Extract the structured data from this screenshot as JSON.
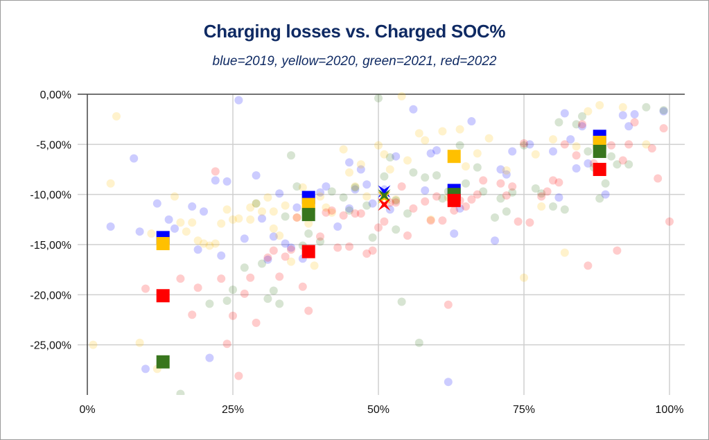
{
  "chart_data": {
    "type": "scatter",
    "title": "Charging losses vs. Charged SOC%",
    "subtitle": "blue=2019, yellow=2020, green=2021, red=2022",
    "xlabel": "",
    "ylabel": "",
    "xlim": [
      0,
      100
    ],
    "ylim": [
      -30,
      0
    ],
    "grid": true,
    "legend": "none",
    "x_ticks": [
      "0%",
      "25%",
      "50%",
      "75%",
      "100%"
    ],
    "x_tick_values": [
      0,
      25,
      50,
      75,
      100
    ],
    "y_ticks": [
      "0,00%",
      "-5,00%",
      "-10,00%",
      "-15,00%",
      "-20,00%",
      "-25,00%"
    ],
    "y_tick_values": [
      0,
      -5,
      -10,
      -15,
      -20,
      -25
    ],
    "colors": {
      "2019": "#0000ff",
      "2020": "#ffc000",
      "2021": "#38761d",
      "2022": "#ff0000"
    },
    "series": [
      {
        "name": "2019",
        "color_name": "blue",
        "kind": "points",
        "points": [
          [
            4,
            -13.2
          ],
          [
            8,
            -6.4
          ],
          [
            9,
            -13.7
          ],
          [
            10,
            -27.4
          ],
          [
            12,
            -10.9
          ],
          [
            14,
            -12.5
          ],
          [
            15,
            -13.4
          ],
          [
            18,
            -11.2
          ],
          [
            19,
            -15.5
          ],
          [
            20,
            -11.7
          ],
          [
            21,
            -26.3
          ],
          [
            22,
            -8.6
          ],
          [
            23,
            -16.1
          ],
          [
            24,
            -8.7
          ],
          [
            26,
            -0.6
          ],
          [
            27,
            -14.4
          ],
          [
            29,
            -8.1
          ],
          [
            30,
            -12.4
          ],
          [
            31,
            -16.5
          ],
          [
            32,
            -14.2
          ],
          [
            33,
            -9.9
          ],
          [
            34,
            -14.9
          ],
          [
            35,
            -15.3
          ],
          [
            36,
            -11.3
          ],
          [
            37,
            -16.4
          ],
          [
            40,
            -9.8
          ],
          [
            41,
            -9.2
          ],
          [
            43,
            -13.2
          ],
          [
            45,
            -6.8
          ],
          [
            45,
            -11.4
          ],
          [
            46,
            -9.5
          ],
          [
            47,
            -7.5
          ],
          [
            48,
            -9.0
          ],
          [
            49,
            -10.9
          ],
          [
            51,
            -9.5
          ],
          [
            52,
            -11.5
          ],
          [
            53,
            -6.2
          ],
          [
            56,
            -1.5
          ],
          [
            58,
            -9.6
          ],
          [
            59,
            -5.9
          ],
          [
            60,
            -5.6
          ],
          [
            62,
            -28.7
          ],
          [
            63,
            -9.6
          ],
          [
            63,
            -13.9
          ],
          [
            64,
            -11.4
          ],
          [
            66,
            -2.7
          ],
          [
            70,
            -14.6
          ],
          [
            71,
            -7.5
          ],
          [
            72,
            -8.0
          ],
          [
            73,
            -5.7
          ],
          [
            76,
            -5.0
          ],
          [
            80,
            -5.7
          ],
          [
            81,
            -10.3
          ],
          [
            82,
            -1.9
          ],
          [
            83,
            -4.5
          ],
          [
            84,
            -7.4
          ],
          [
            85,
            -3.2
          ],
          [
            86,
            -6.9
          ],
          [
            89,
            -10.0
          ],
          [
            92,
            -2.1
          ],
          [
            93,
            -3.2
          ],
          [
            94,
            -2.0
          ],
          [
            99,
            -1.7
          ]
        ]
      },
      {
        "name": "2020",
        "color_name": "yellow",
        "kind": "points",
        "points": [
          [
            1,
            -25.0
          ],
          [
            4,
            -8.9
          ],
          [
            5,
            -2.2
          ],
          [
            9,
            -24.8
          ],
          [
            11,
            -13.9
          ],
          [
            12,
            -27.4
          ],
          [
            13,
            -14.4
          ],
          [
            15,
            -10.2
          ],
          [
            16,
            -12.8
          ],
          [
            17,
            -13.7
          ],
          [
            18,
            -12.8
          ],
          [
            19,
            -14.6
          ],
          [
            20,
            -14.9
          ],
          [
            21,
            -15.1
          ],
          [
            22,
            -14.9
          ],
          [
            23,
            -12.9
          ],
          [
            24,
            -11.5
          ],
          [
            25,
            -12.5
          ],
          [
            26,
            -12.4
          ],
          [
            28,
            -11.3
          ],
          [
            28,
            -12.5
          ],
          [
            29,
            -10.9
          ],
          [
            30,
            -11.7
          ],
          [
            31,
            -10.3
          ],
          [
            32,
            -13.4
          ],
          [
            32,
            -11.7
          ],
          [
            33,
            -14.1
          ],
          [
            34,
            -11.1
          ],
          [
            35,
            -16.7
          ],
          [
            36,
            -12.3
          ],
          [
            37,
            -9.3
          ],
          [
            38,
            -12.9
          ],
          [
            39,
            -17.1
          ],
          [
            40,
            -10.2
          ],
          [
            41,
            -11.3
          ],
          [
            42,
            -11.8
          ],
          [
            44,
            -5.5
          ],
          [
            45,
            -7.8
          ],
          [
            46,
            -9.2
          ],
          [
            47,
            -7.0
          ],
          [
            48,
            -10.2
          ],
          [
            50,
            -5.1
          ],
          [
            51,
            -6.0
          ],
          [
            52,
            -7.5
          ],
          [
            53,
            -10.5
          ],
          [
            54,
            -0.2
          ],
          [
            55,
            -6.6
          ],
          [
            57,
            -3.9
          ],
          [
            58,
            -4.6
          ],
          [
            59,
            -12.5
          ],
          [
            61,
            -3.7
          ],
          [
            62,
            -10.3
          ],
          [
            64,
            -3.5
          ],
          [
            65,
            -7.2
          ],
          [
            67,
            -5.9
          ],
          [
            69,
            -4.4
          ],
          [
            72,
            -7.6
          ],
          [
            75,
            -18.3
          ],
          [
            77,
            -6.0
          ],
          [
            78,
            -11.2
          ],
          [
            80,
            -4.5
          ],
          [
            82,
            -15.8
          ],
          [
            84,
            -5.2
          ],
          [
            86,
            -1.7
          ],
          [
            88,
            -1.1
          ],
          [
            92,
            -1.3
          ],
          [
            96,
            -5.0
          ]
        ]
      },
      {
        "name": "2021",
        "color_name": "green",
        "kind": "points",
        "points": [
          [
            16,
            -29.9
          ],
          [
            21,
            -20.9
          ],
          [
            24,
            -20.6
          ],
          [
            25,
            -19.5
          ],
          [
            27,
            -17.3
          ],
          [
            29,
            -10.9
          ],
          [
            30,
            -16.9
          ],
          [
            31,
            -20.4
          ],
          [
            32,
            -19.6
          ],
          [
            33,
            -20.9
          ],
          [
            34,
            -12.2
          ],
          [
            35,
            -6.1
          ],
          [
            36,
            -9.2
          ],
          [
            37,
            -15.1
          ],
          [
            38,
            -13.9
          ],
          [
            40,
            -14.7
          ],
          [
            42,
            -9.7
          ],
          [
            44,
            -10.3
          ],
          [
            45,
            -11.6
          ],
          [
            46,
            -9.3
          ],
          [
            48,
            -11.1
          ],
          [
            49,
            -14.3
          ],
          [
            50,
            -0.4
          ],
          [
            51,
            -8.2
          ],
          [
            52,
            -6.3
          ],
          [
            53,
            -10.6
          ],
          [
            53,
            -13.5
          ],
          [
            54,
            -20.7
          ],
          [
            55,
            -11.9
          ],
          [
            56,
            -7.8
          ],
          [
            57,
            -24.8
          ],
          [
            58,
            -8.3
          ],
          [
            60,
            -8.1
          ],
          [
            61,
            -10.4
          ],
          [
            62,
            -9.7
          ],
          [
            63,
            -6.3
          ],
          [
            64,
            -5.1
          ],
          [
            65,
            -8.9
          ],
          [
            67,
            -7.3
          ],
          [
            68,
            -9.7
          ],
          [
            70,
            -12.3
          ],
          [
            71,
            -10.4
          ],
          [
            72,
            -11.7
          ],
          [
            73,
            -9.8
          ],
          [
            75,
            -5.1
          ],
          [
            77,
            -9.4
          ],
          [
            78,
            -9.9
          ],
          [
            80,
            -11.2
          ],
          [
            81,
            -2.8
          ],
          [
            82,
            -11.5
          ],
          [
            84,
            -3.0
          ],
          [
            85,
            -2.2
          ],
          [
            86,
            -5.7
          ],
          [
            87,
            -7.3
          ],
          [
            88,
            -10.4
          ],
          [
            89,
            -8.9
          ],
          [
            90,
            -6.2
          ],
          [
            91,
            -7.0
          ],
          [
            93,
            -7.0
          ],
          [
            96,
            -1.3
          ],
          [
            99,
            -1.6
          ]
        ]
      },
      {
        "name": "2022",
        "color_name": "red",
        "kind": "points",
        "points": [
          [
            10,
            -19.4
          ],
          [
            16,
            -18.4
          ],
          [
            18,
            -22.0
          ],
          [
            19,
            -19.3
          ],
          [
            22,
            -7.7
          ],
          [
            23,
            -18.4
          ],
          [
            24,
            -24.9
          ],
          [
            25,
            -22.1
          ],
          [
            26,
            -28.1
          ],
          [
            27,
            -19.9
          ],
          [
            28,
            -18.3
          ],
          [
            29,
            -22.8
          ],
          [
            31,
            -16.3
          ],
          [
            32,
            -15.6
          ],
          [
            33,
            -18.2
          ],
          [
            34,
            -16.2
          ],
          [
            35,
            -15.5
          ],
          [
            36,
            -12.3
          ],
          [
            37,
            -19.2
          ],
          [
            38,
            -21.6
          ],
          [
            40,
            -14.2
          ],
          [
            41,
            -11.8
          ],
          [
            42,
            -11.6
          ],
          [
            43,
            -15.3
          ],
          [
            44,
            -12.1
          ],
          [
            45,
            -15.2
          ],
          [
            46,
            -11.9
          ],
          [
            47,
            -11.9
          ],
          [
            48,
            -15.9
          ],
          [
            49,
            -15.6
          ],
          [
            50,
            -13.3
          ],
          [
            51,
            -12.7
          ],
          [
            52,
            -10.8
          ],
          [
            53,
            -10.8
          ],
          [
            54,
            -9.2
          ],
          [
            55,
            -14.1
          ],
          [
            56,
            -11.4
          ],
          [
            58,
            -10.7
          ],
          [
            59,
            -12.6
          ],
          [
            60,
            -10.2
          ],
          [
            61,
            -12.6
          ],
          [
            62,
            -21.0
          ],
          [
            63,
            -11.6
          ],
          [
            64,
            -10.6
          ],
          [
            65,
            -11.2
          ],
          [
            66,
            -10.5
          ],
          [
            67,
            -10.0
          ],
          [
            68,
            -8.6
          ],
          [
            71,
            -8.9
          ],
          [
            72,
            -10.1
          ],
          [
            73,
            -9.2
          ],
          [
            74,
            -12.7
          ],
          [
            75,
            -4.9
          ],
          [
            76,
            -12.8
          ],
          [
            78,
            -10.2
          ],
          [
            79,
            -9.7
          ],
          [
            80,
            -8.6
          ],
          [
            81,
            -8.8
          ],
          [
            82,
            -5.0
          ],
          [
            84,
            -6.1
          ],
          [
            85,
            -3.0
          ],
          [
            86,
            -17.1
          ],
          [
            87,
            -6.9
          ],
          [
            90,
            -5.1
          ],
          [
            91,
            -15.6
          ],
          [
            92,
            -6.6
          ],
          [
            93,
            -5.0
          ],
          [
            94,
            -2.8
          ],
          [
            97,
            -5.4
          ],
          [
            98,
            -8.4
          ],
          [
            99,
            -3.4
          ],
          [
            100,
            -12.7
          ]
        ]
      }
    ],
    "averages": [
      {
        "name": "2019 average",
        "color_name": "blue",
        "marker": "square",
        "points": [
          [
            13,
            -14.3
          ],
          [
            38,
            -10.3
          ],
          [
            63,
            -9.6
          ],
          [
            88,
            -4.2
          ]
        ]
      },
      {
        "name": "2020 average",
        "color_name": "yellow",
        "marker": "square",
        "points": [
          [
            13,
            -14.9
          ],
          [
            38,
            -11.0
          ],
          [
            63,
            -6.2
          ],
          [
            88,
            -4.8
          ]
        ]
      },
      {
        "name": "2021 average",
        "color_name": "green",
        "marker": "square",
        "points": [
          [
            13,
            -26.7
          ],
          [
            38,
            -12.0
          ],
          [
            63,
            -10.0
          ],
          [
            88,
            -5.7
          ]
        ]
      },
      {
        "name": "2022 average",
        "color_name": "red",
        "marker": "square",
        "points": [
          [
            13,
            -20.1
          ],
          [
            38,
            -15.7
          ],
          [
            63,
            -10.6
          ],
          [
            88,
            -7.5
          ]
        ]
      },
      {
        "name": "2019 overall",
        "color_name": "blue",
        "marker": "x",
        "points": [
          [
            51,
            -9.7
          ]
        ]
      },
      {
        "name": "2020 overall",
        "color_name": "yellow",
        "marker": "x",
        "points": [
          [
            51,
            -10.3
          ]
        ]
      },
      {
        "name": "2021 overall",
        "color_name": "green",
        "marker": "x",
        "points": [
          [
            51,
            -10.1
          ]
        ]
      },
      {
        "name": "2022 overall",
        "color_name": "red",
        "marker": "x",
        "points": [
          [
            51,
            -11.0
          ]
        ]
      }
    ]
  }
}
